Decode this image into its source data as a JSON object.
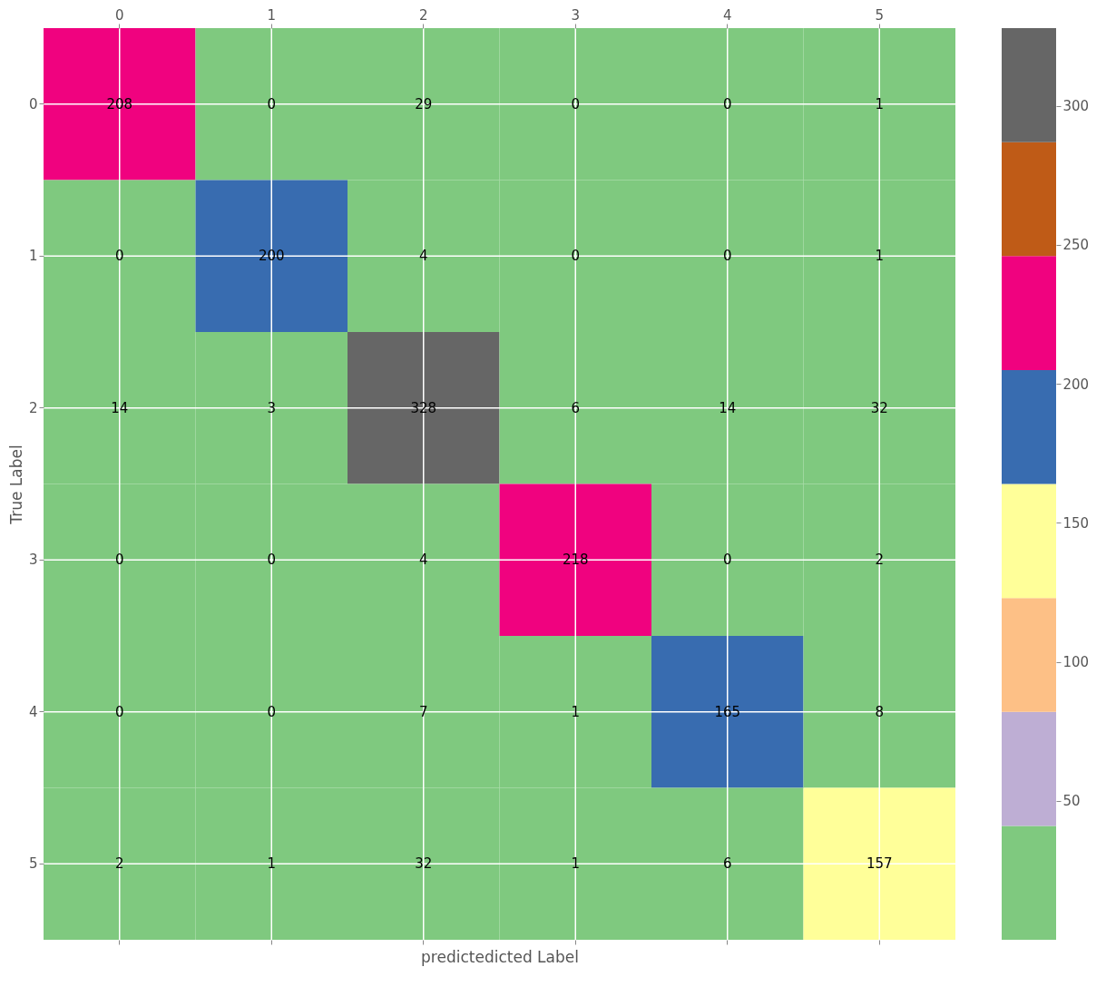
{
  "chart_data": {
    "type": "heatmap",
    "xlabel": "predictedicted Label",
    "ylabel": "True Label",
    "categories": [
      "0",
      "1",
      "2",
      "3",
      "4",
      "5"
    ],
    "y_categories": [
      "0",
      "1",
      "2",
      "3",
      "4",
      "5"
    ],
    "cells": [
      [
        208,
        0,
        29,
        0,
        0,
        1
      ],
      [
        0,
        200,
        4,
        0,
        0,
        1
      ],
      [
        14,
        3,
        328,
        6,
        14,
        32
      ],
      [
        0,
        0,
        4,
        218,
        0,
        2
      ],
      [
        0,
        0,
        7,
        1,
        165,
        8
      ],
      [
        2,
        1,
        32,
        1,
        6,
        157
      ]
    ],
    "clim": [
      0,
      328
    ],
    "cticks": [
      50,
      100,
      150,
      200,
      250,
      300
    ],
    "data_labels": true,
    "grid": true
  }
}
